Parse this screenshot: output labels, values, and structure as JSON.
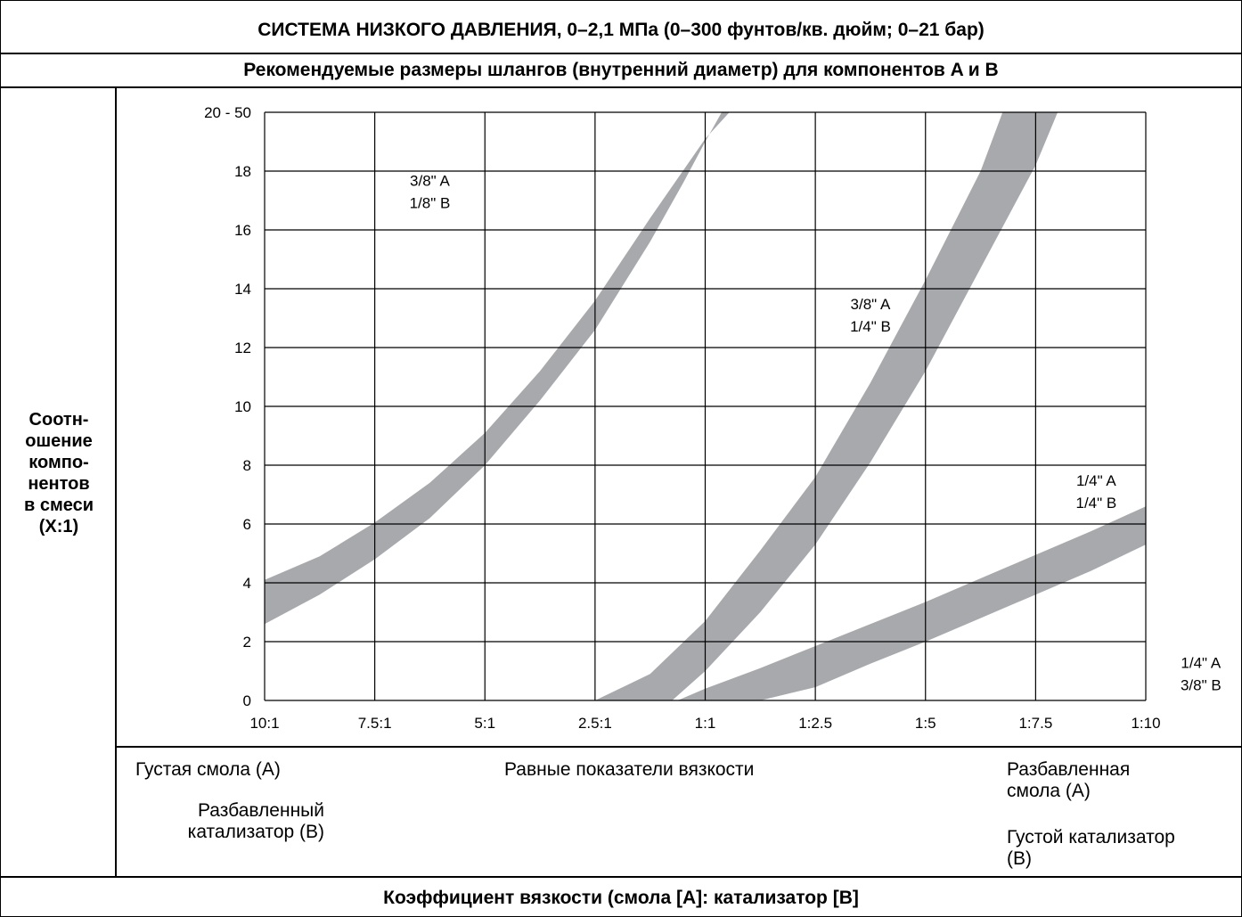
{
  "header": {
    "title": "СИСТЕМА НИЗКОГО ДАВЛЕНИЯ, 0–2,1 МПа (0–300 фунтов/кв. дюйм; 0–21 бар)",
    "subtitle": "Рекомендуемые размеры шлангов (внутренний диаметр) для компонентов A и B"
  },
  "y_axis_label": [
    "Соотн-",
    "ошение",
    "компо-",
    "нентов",
    "в смеси",
    "(X:1)"
  ],
  "x_axis_title": "Коэффициент вязкости (смола [A]: катализатор [B]",
  "bottom_notes": {
    "left_top": "Густая смола (A)",
    "left_bottom": [
      "Разбавленный",
      "катализатор (B)"
    ],
    "center": "Равные показатели вязкости",
    "right_top": [
      "Разбавленная",
      "смола (A)"
    ],
    "right_bottom": [
      "Густой катализатор",
      "(B)"
    ]
  },
  "colors": {
    "band": "#a7a9ac",
    "grid": "#000000"
  },
  "chart_data": {
    "type": "area",
    "grid": true,
    "xlabel": "Коэффициент вязкости (смола [A]: катализатор [B]",
    "ylabel": "Соотношение компонентов в смеси (X:1)",
    "categories": [
      "10:1",
      "7.5:1",
      "5:1",
      "2.5:1",
      "1:1",
      "1:2.5",
      "1:5",
      "1:7.5",
      "1:10"
    ],
    "y_ticks": [
      "0",
      "2",
      "4",
      "6",
      "8",
      "10",
      "12",
      "14",
      "16",
      "18",
      "20 - 50"
    ],
    "ylim": [
      0,
      20
    ],
    "region_labels": [
      {
        "lines": [
          "3/8\" A",
          "1/8\" B"
        ],
        "x": 1.5,
        "y": 17.5
      },
      {
        "lines": [
          "3/8\" A",
          "1/4\" B"
        ],
        "x": 5.5,
        "y": 13.3
      },
      {
        "lines": [
          "1/4\" A",
          "1/4\" B"
        ],
        "x": 7.55,
        "y": 7.3
      },
      {
        "lines": [
          "1/4\" A",
          "3/8\" B"
        ],
        "x": 8.5,
        "y": 1.1
      }
    ],
    "series": [
      {
        "upper": [
          [
            0,
            4.1
          ],
          [
            0.5,
            4.9
          ],
          [
            1,
            6.05
          ],
          [
            1.5,
            7.4
          ],
          [
            2,
            9.1
          ],
          [
            2.5,
            11.2
          ],
          [
            3,
            13.6
          ],
          [
            3.5,
            16.4
          ],
          [
            4,
            19.1
          ],
          [
            4.22,
            20
          ]
        ],
        "lower": [
          [
            0,
            2.6
          ],
          [
            0.5,
            3.6
          ],
          [
            1,
            4.8
          ],
          [
            1.5,
            6.2
          ],
          [
            2,
            8.0
          ],
          [
            2.5,
            10.2
          ],
          [
            3,
            12.6
          ],
          [
            3.5,
            15.6
          ],
          [
            3.8,
            17.6
          ],
          [
            4.0,
            19.0
          ],
          [
            4.15,
            20
          ]
        ]
      },
      {
        "upper": [
          [
            3.7,
            0
          ],
          [
            4,
            1.0
          ],
          [
            4.5,
            3.0
          ],
          [
            5,
            5.3
          ],
          [
            5.5,
            8.1
          ],
          [
            6,
            11.2
          ],
          [
            6.5,
            14.7
          ],
          [
            7,
            18.2
          ],
          [
            7.2,
            20
          ]
        ],
        "lower": [
          [
            3.0,
            0
          ],
          [
            3.5,
            0.9
          ],
          [
            4,
            2.7
          ],
          [
            4.5,
            5.1
          ],
          [
            5,
            7.6
          ],
          [
            5.5,
            10.8
          ],
          [
            6,
            14.3
          ],
          [
            6.5,
            18.0
          ],
          [
            6.7,
            20
          ]
        ]
      },
      {
        "upper": [
          [
            3.75,
            0
          ],
          [
            4,
            0.4
          ],
          [
            4.5,
            1.1
          ],
          [
            5,
            1.85
          ],
          [
            5.5,
            2.6
          ],
          [
            6,
            3.35
          ],
          [
            6.5,
            4.15
          ],
          [
            7,
            4.95
          ],
          [
            7.5,
            5.75
          ],
          [
            8,
            6.6
          ]
        ],
        "lower": [
          [
            3.75,
            0
          ],
          [
            4,
            0.0
          ],
          [
            4.5,
            0.0
          ],
          [
            5,
            0.45
          ],
          [
            5.5,
            1.25
          ],
          [
            6,
            2.0
          ],
          [
            6.5,
            2.8
          ],
          [
            7,
            3.6
          ],
          [
            7.5,
            4.4
          ],
          [
            8,
            5.3
          ]
        ]
      }
    ]
  }
}
